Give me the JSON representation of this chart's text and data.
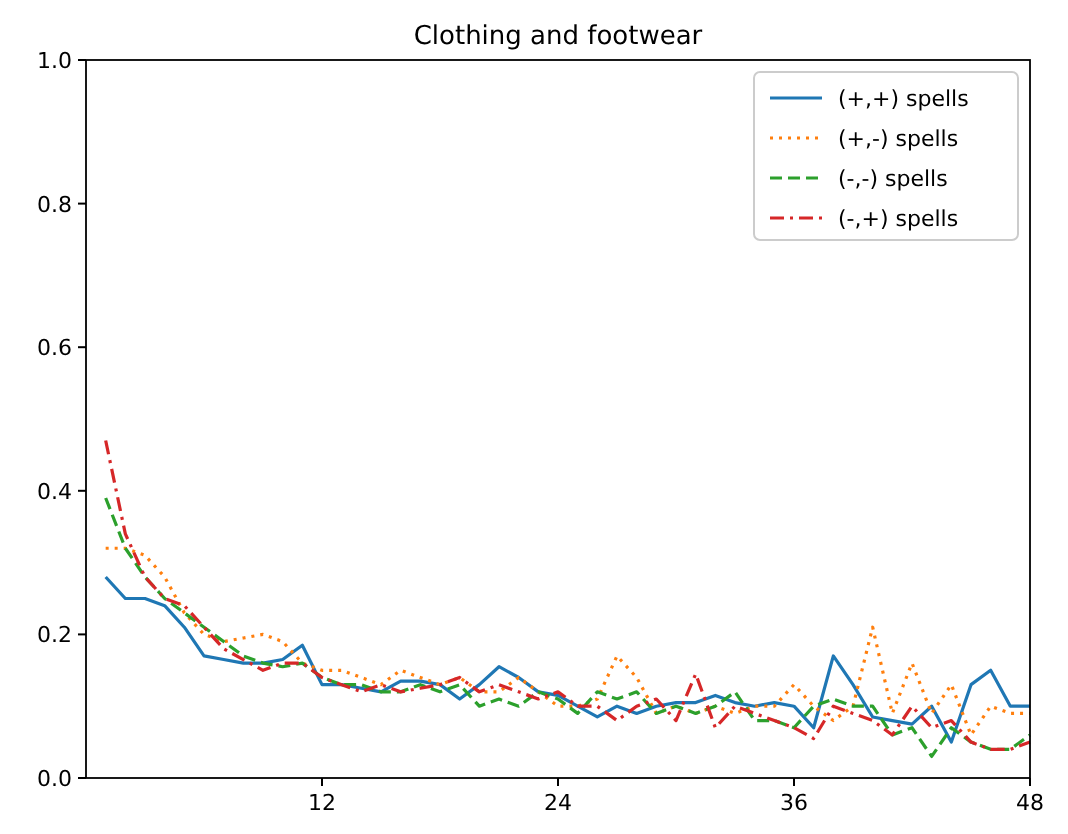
{
  "chart_data": {
    "type": "line",
    "title": "Clothing and footwear",
    "x": [
      1,
      2,
      3,
      4,
      5,
      6,
      7,
      8,
      9,
      10,
      11,
      12,
      13,
      14,
      15,
      16,
      17,
      18,
      19,
      20,
      21,
      22,
      23,
      24,
      25,
      26,
      27,
      28,
      29,
      30,
      31,
      32,
      33,
      34,
      35,
      36,
      37,
      38,
      39,
      40,
      41,
      42,
      43,
      44,
      45,
      46,
      47,
      48
    ],
    "xlim": [
      0,
      48
    ],
    "xticks": [
      12,
      24,
      36,
      48
    ],
    "ylim": [
      0,
      1
    ],
    "yticks": [
      {
        "value": 0,
        "label": "0.0"
      },
      0.2,
      0.4,
      0.6,
      0.8,
      {
        "value": 1,
        "label": "1.0"
      }
    ],
    "legend": "top right",
    "grid": false,
    "series": [
      {
        "name": "(+,+) spells",
        "color": "#1f77b4",
        "line_style": "solid",
        "values": [
          0.28,
          0.25,
          0.25,
          0.24,
          0.21,
          0.17,
          0.165,
          0.16,
          0.16,
          0.165,
          0.185,
          0.13,
          0.13,
          0.125,
          0.12,
          0.135,
          0.135,
          0.13,
          0.11,
          0.13,
          0.155,
          0.14,
          0.12,
          0.115,
          0.1,
          0.085,
          0.1,
          0.09,
          0.1,
          0.105,
          0.105,
          0.115,
          0.105,
          0.1,
          0.105,
          0.1,
          0.07,
          0.17,
          0.13,
          0.085,
          0.08,
          0.075,
          0.1,
          0.05,
          0.13,
          0.15,
          0.1,
          0.1
        ]
      },
      {
        "name": "(+,-) spells",
        "color": "#ff7f0e",
        "line_style": "dotted",
        "values": [
          0.32,
          0.32,
          0.31,
          0.28,
          0.23,
          0.2,
          0.19,
          0.195,
          0.2,
          0.19,
          0.16,
          0.15,
          0.15,
          0.14,
          0.13,
          0.15,
          0.14,
          0.13,
          0.14,
          0.12,
          0.12,
          0.14,
          0.12,
          0.1,
          0.1,
          0.11,
          0.17,
          0.14,
          0.09,
          0.1,
          0.09,
          0.1,
          0.09,
          0.1,
          0.1,
          0.13,
          0.1,
          0.08,
          0.1,
          0.21,
          0.09,
          0.16,
          0.09,
          0.13,
          0.06,
          0.1,
          0.09,
          0.09
        ]
      },
      {
        "name": "(-,-) spells",
        "color": "#2ca02c",
        "line_style": "dashed",
        "values": [
          0.39,
          0.32,
          0.28,
          0.25,
          0.23,
          0.21,
          0.19,
          0.17,
          0.16,
          0.155,
          0.16,
          0.14,
          0.13,
          0.13,
          0.12,
          0.12,
          0.13,
          0.12,
          0.13,
          0.1,
          0.11,
          0.1,
          0.12,
          0.11,
          0.09,
          0.12,
          0.11,
          0.12,
          0.09,
          0.1,
          0.09,
          0.1,
          0.12,
          0.08,
          0.08,
          0.07,
          0.1,
          0.11,
          0.1,
          0.1,
          0.06,
          0.07,
          0.03,
          0.07,
          0.05,
          0.04,
          0.04,
          0.06
        ]
      },
      {
        "name": "(-,+) spells",
        "color": "#d62728",
        "line_style": "dashdot",
        "values": [
          0.47,
          0.34,
          0.28,
          0.25,
          0.24,
          0.21,
          0.18,
          0.165,
          0.15,
          0.16,
          0.16,
          0.14,
          0.13,
          0.12,
          0.13,
          0.12,
          0.125,
          0.13,
          0.14,
          0.12,
          0.13,
          0.12,
          0.11,
          0.12,
          0.1,
          0.1,
          0.08,
          0.1,
          0.11,
          0.08,
          0.145,
          0.07,
          0.1,
          0.09,
          0.08,
          0.07,
          0.055,
          0.1,
          0.09,
          0.08,
          0.06,
          0.1,
          0.07,
          0.08,
          0.05,
          0.04,
          0.04,
          0.05
        ]
      }
    ]
  }
}
